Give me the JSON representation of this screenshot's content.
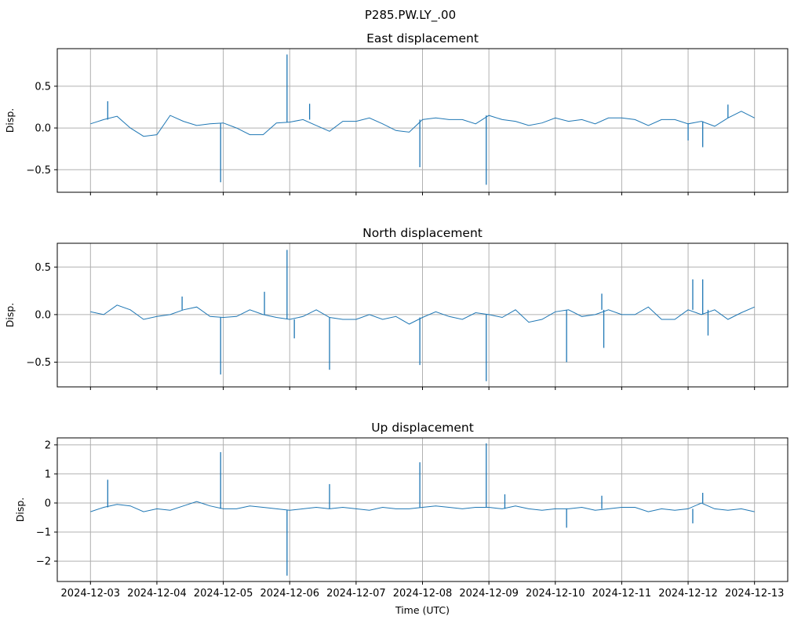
{
  "chart_data": [
    {
      "type": "line",
      "suptitle": "P285.PW.LY_.00",
      "title": "East displacement",
      "xlabel": "",
      "ylabel": "Disp.",
      "color": "#1f77b4",
      "grid": true,
      "x_unit": "days since 2024-12-03 00:00 UTC",
      "xlim": [
        -0.5,
        10.5
      ],
      "ylim": [
        -0.77,
        0.95
      ],
      "yticks": [
        -0.5,
        0.0,
        0.5
      ],
      "ytick_labels": [
        "−0.5",
        "0.0",
        "0.5"
      ],
      "x_step": 0.2,
      "values": [
        0.05,
        0.1,
        0.14,
        0.0,
        -0.1,
        -0.08,
        0.15,
        0.08,
        0.03,
        0.05,
        0.06,
        0.0,
        -0.08,
        -0.08,
        0.06,
        0.07,
        0.1,
        0.03,
        -0.04,
        0.08,
        0.08,
        0.12,
        0.05,
        -0.03,
        -0.05,
        0.1,
        0.12,
        0.1,
        0.1,
        0.05,
        0.15,
        0.1,
        0.08,
        0.03,
        0.06,
        0.12,
        0.08,
        0.1,
        0.05,
        0.12,
        0.12,
        0.1,
        0.03,
        0.1,
        0.1,
        0.05,
        0.08,
        0.02,
        0.12,
        0.2,
        0.12
      ],
      "spikes": [
        [
          0.26,
          0.32
        ],
        [
          1.96,
          -0.65
        ],
        [
          2.96,
          0.88
        ],
        [
          3.3,
          0.29
        ],
        [
          4.96,
          -0.47
        ],
        [
          5.96,
          -0.68
        ],
        [
          9.0,
          -0.15
        ],
        [
          9.22,
          -0.23
        ],
        [
          9.6,
          0.28
        ]
      ]
    },
    {
      "type": "line",
      "title": "North displacement",
      "xlabel": "",
      "ylabel": "Disp.",
      "color": "#1f77b4",
      "grid": true,
      "x_unit": "days since 2024-12-03 00:00 UTC",
      "xlim": [
        -0.5,
        10.5
      ],
      "ylim": [
        -0.76,
        0.75
      ],
      "yticks": [
        -0.5,
        0.0,
        0.5
      ],
      "ytick_labels": [
        "−0.5",
        "0.0",
        "0.5"
      ],
      "x_step": 0.2,
      "values": [
        0.03,
        0.0,
        0.1,
        0.05,
        -0.05,
        -0.02,
        0.0,
        0.05,
        0.08,
        -0.02,
        -0.03,
        -0.02,
        0.05,
        0.0,
        -0.03,
        -0.05,
        -0.02,
        0.05,
        -0.03,
        -0.05,
        -0.05,
        0.0,
        -0.05,
        -0.02,
        -0.1,
        -0.03,
        0.03,
        -0.02,
        -0.05,
        0.02,
        0.0,
        -0.03,
        0.05,
        -0.08,
        -0.05,
        0.03,
        0.05,
        -0.02,
        0.0,
        0.05,
        0.0,
        0.0,
        0.08,
        -0.05,
        -0.05,
        0.05,
        0.0,
        0.05,
        -0.05,
        0.02,
        0.08
      ],
      "spikes": [
        [
          1.38,
          0.19
        ],
        [
          1.96,
          -0.63
        ],
        [
          2.62,
          0.24
        ],
        [
          2.96,
          0.68
        ],
        [
          3.07,
          -0.25
        ],
        [
          3.6,
          -0.58
        ],
        [
          4.96,
          -0.53
        ],
        [
          5.96,
          -0.7
        ],
        [
          7.17,
          -0.5
        ],
        [
          7.7,
          0.22
        ],
        [
          7.73,
          -0.35
        ],
        [
          9.07,
          0.37
        ],
        [
          9.22,
          0.37
        ],
        [
          9.3,
          -0.22
        ]
      ]
    },
    {
      "type": "line",
      "title": "Up displacement",
      "xlabel": "Time (UTC)",
      "ylabel": "Disp.",
      "color": "#1f77b4",
      "grid": true,
      "x_unit": "days since 2024-12-03 00:00 UTC",
      "xlim": [
        -0.5,
        10.5
      ],
      "ylim": [
        -2.7,
        2.24
      ],
      "yticks": [
        -2,
        -1,
        0,
        1,
        2
      ],
      "ytick_labels": [
        "−2",
        "−1",
        "0",
        "1",
        "2"
      ],
      "xticks": [
        0,
        1,
        2,
        3,
        4,
        5,
        6,
        7,
        8,
        9,
        10
      ],
      "xtick_labels": [
        "2024-12-03",
        "2024-12-04",
        "2024-12-05",
        "2024-12-06",
        "2024-12-07",
        "2024-12-08",
        "2024-12-09",
        "2024-12-10",
        "2024-12-11",
        "2024-12-12",
        "2024-12-13"
      ],
      "x_step": 0.2,
      "values": [
        -0.3,
        -0.15,
        -0.05,
        -0.1,
        -0.3,
        -0.2,
        -0.25,
        -0.1,
        0.05,
        -0.1,
        -0.2,
        -0.2,
        -0.1,
        -0.15,
        -0.2,
        -0.25,
        -0.2,
        -0.15,
        -0.2,
        -0.15,
        -0.2,
        -0.25,
        -0.15,
        -0.2,
        -0.2,
        -0.15,
        -0.1,
        -0.15,
        -0.2,
        -0.15,
        -0.15,
        -0.2,
        -0.1,
        -0.2,
        -0.25,
        -0.2,
        -0.2,
        -0.15,
        -0.25,
        -0.2,
        -0.15,
        -0.15,
        -0.3,
        -0.2,
        -0.25,
        -0.2,
        0.0,
        -0.2,
        -0.25,
        -0.2,
        -0.3
      ],
      "spikes": [
        [
          0.26,
          0.8
        ],
        [
          1.96,
          1.75
        ],
        [
          2.96,
          -2.5
        ],
        [
          3.6,
          0.65
        ],
        [
          4.96,
          1.4
        ],
        [
          5.96,
          2.05
        ],
        [
          6.24,
          0.3
        ],
        [
          7.17,
          -0.85
        ],
        [
          7.7,
          0.25
        ],
        [
          9.07,
          -0.7
        ],
        [
          9.22,
          0.35
        ]
      ]
    }
  ]
}
